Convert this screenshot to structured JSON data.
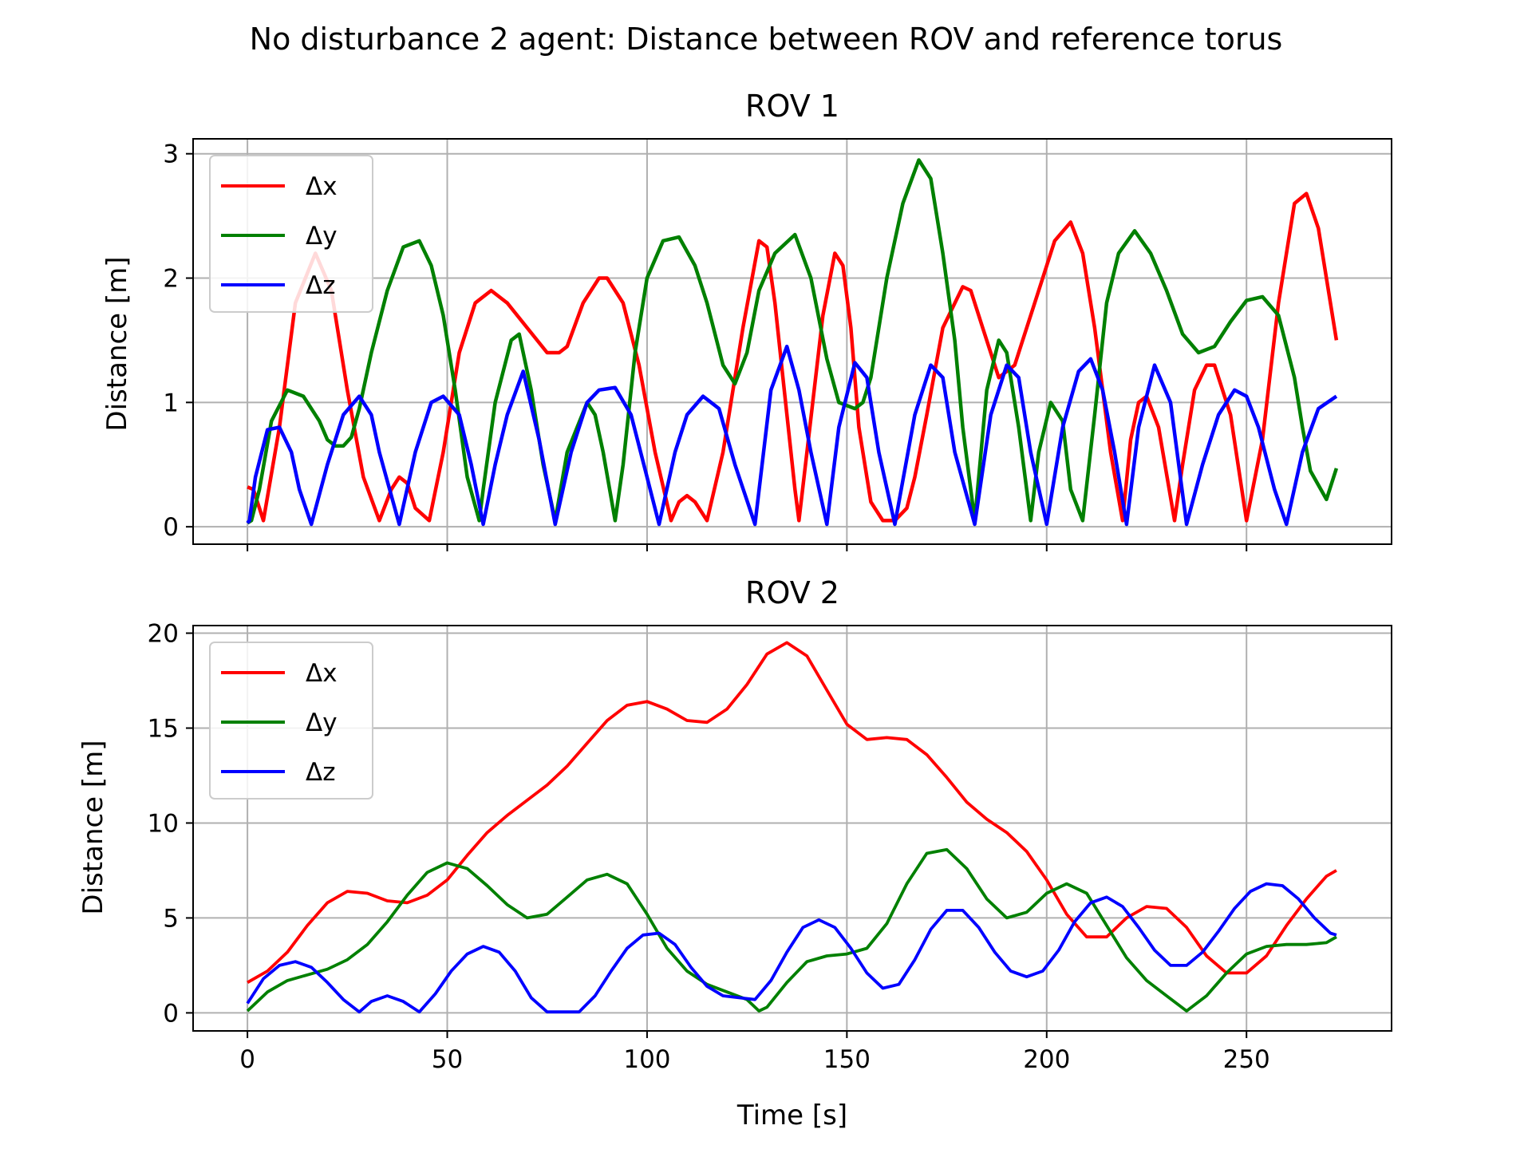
{
  "figure": {
    "suptitle": "No disturbance 2 agent: Distance between ROV and reference torus"
  },
  "colors": {
    "dx": "#ff0000",
    "dy": "#008000",
    "dz": "#0000ff",
    "grid": "#b0b0b0"
  },
  "chart_data": [
    {
      "type": "line",
      "title": "ROV 1",
      "xlabel": "",
      "ylabel": "Distance [m]",
      "xlim": [
        -13.6,
        286.3
      ],
      "ylim": [
        -0.14,
        3.12
      ],
      "xticks": [
        0,
        50,
        100,
        150,
        200,
        250
      ],
      "xtick_labels": [
        "",
        "",
        "",
        "",
        "",
        ""
      ],
      "yticks": [
        0,
        1,
        2,
        3
      ],
      "ytick_labels": [
        "0",
        "1",
        "2",
        "3"
      ],
      "grid": true,
      "legend_position": "upper-left",
      "series": [
        {
          "name": "Δx",
          "color": "#ff0000",
          "x": [
            0,
            1.5,
            4,
            8,
            12,
            17,
            21,
            25,
            29,
            33,
            36,
            38,
            40,
            42,
            45.5,
            49,
            53,
            57,
            61,
            65,
            70,
            75,
            78,
            80,
            84,
            88,
            90,
            94,
            98,
            102,
            106,
            108,
            110,
            112,
            115,
            119,
            124,
            128,
            130,
            132,
            134,
            137,
            138,
            140,
            144,
            147,
            149,
            151,
            153,
            156,
            159,
            162,
            165,
            167,
            170,
            174,
            179,
            181,
            184,
            188,
            192,
            194,
            198,
            202,
            206,
            209,
            212,
            216,
            219,
            221,
            223,
            225,
            228,
            232,
            234,
            237,
            240,
            242,
            246,
            250,
            254,
            258,
            262,
            265,
            268,
            272.5
          ],
          "y": [
            0.32,
            0.3,
            0.05,
            0.8,
            1.8,
            2.2,
            1.9,
            1.1,
            0.4,
            0.05,
            0.3,
            0.4,
            0.35,
            0.15,
            0.05,
            0.6,
            1.4,
            1.8,
            1.9,
            1.8,
            1.6,
            1.4,
            1.4,
            1.45,
            1.8,
            2.0,
            2.0,
            1.8,
            1.3,
            0.6,
            0.05,
            0.2,
            0.25,
            0.2,
            0.05,
            0.6,
            1.6,
            2.3,
            2.25,
            1.8,
            1.2,
            0.3,
            0.05,
            0.6,
            1.7,
            2.2,
            2.1,
            1.6,
            0.8,
            0.2,
            0.05,
            0.05,
            0.15,
            0.4,
            0.9,
            1.6,
            1.93,
            1.9,
            1.6,
            1.2,
            1.3,
            1.5,
            1.9,
            2.3,
            2.45,
            2.2,
            1.6,
            0.6,
            0.05,
            0.7,
            1.0,
            1.05,
            0.8,
            0.05,
            0.5,
            1.1,
            1.3,
            1.3,
            0.9,
            0.05,
            0.7,
            1.8,
            2.6,
            2.68,
            2.4,
            1.5
          ]
        },
        {
          "name": "Δy",
          "color": "#008000",
          "x": [
            0,
            1,
            3,
            6,
            10,
            14,
            18,
            20,
            22,
            24,
            26,
            28,
            31,
            35,
            39,
            43,
            46,
            49,
            52,
            55,
            58,
            59,
            62,
            66,
            68,
            71,
            74,
            77,
            80,
            85,
            87,
            89,
            92,
            94,
            97,
            100,
            104,
            108,
            112,
            115,
            119,
            122,
            125,
            128,
            132,
            137,
            141,
            145,
            148,
            152,
            154,
            156,
            160,
            164,
            168,
            171,
            174,
            177,
            179,
            182,
            185,
            188,
            190,
            193,
            196,
            198,
            201,
            204,
            206,
            209,
            212,
            215,
            218,
            222,
            226,
            230,
            234,
            238,
            242,
            246,
            250,
            254,
            258,
            262,
            264,
            266,
            270,
            272.5
          ],
          "y": [
            0.03,
            0.05,
            0.3,
            0.85,
            1.1,
            1.05,
            0.85,
            0.7,
            0.65,
            0.65,
            0.72,
            0.95,
            1.4,
            1.9,
            2.25,
            2.3,
            2.1,
            1.7,
            1.1,
            0.4,
            0.05,
            0.3,
            1.0,
            1.5,
            1.55,
            1.1,
            0.5,
            0.05,
            0.6,
            1.0,
            0.9,
            0.6,
            0.05,
            0.5,
            1.4,
            2.0,
            2.3,
            2.33,
            2.1,
            1.8,
            1.3,
            1.15,
            1.4,
            1.9,
            2.2,
            2.35,
            2.0,
            1.35,
            1.0,
            0.95,
            1.0,
            1.2,
            2.0,
            2.6,
            2.95,
            2.8,
            2.2,
            1.5,
            0.8,
            0.05,
            1.1,
            1.5,
            1.4,
            0.8,
            0.05,
            0.6,
            1.0,
            0.85,
            0.3,
            0.05,
            0.9,
            1.8,
            2.2,
            2.38,
            2.2,
            1.9,
            1.55,
            1.4,
            1.45,
            1.65,
            1.82,
            1.85,
            1.7,
            1.2,
            0.8,
            0.45,
            0.22,
            0.47
          ]
        },
        {
          "name": "Δz",
          "color": "#0000ff",
          "x": [
            0,
            0.5,
            2,
            5,
            8,
            11,
            13,
            16,
            20,
            24,
            28,
            31,
            33,
            38,
            42,
            46,
            49,
            53,
            56,
            59,
            62,
            65,
            69,
            73,
            77,
            81,
            85,
            88,
            92,
            96,
            100,
            103,
            107,
            110,
            114,
            118,
            122,
            127,
            131,
            135,
            138,
            141,
            145,
            148,
            152,
            155,
            158,
            162,
            167,
            171,
            174,
            177,
            182,
            186,
            190,
            193,
            196,
            200,
            204,
            208,
            211,
            214,
            217,
            220,
            223,
            227,
            231,
            235,
            239,
            243,
            247,
            250,
            253,
            257,
            260,
            264,
            268,
            272.5
          ],
          "y": [
            0.03,
            0.05,
            0.4,
            0.78,
            0.8,
            0.6,
            0.3,
            0.02,
            0.5,
            0.9,
            1.05,
            0.9,
            0.6,
            0.02,
            0.6,
            1.0,
            1.05,
            0.9,
            0.5,
            0.02,
            0.5,
            0.9,
            1.25,
            0.7,
            0.02,
            0.6,
            1.0,
            1.1,
            1.12,
            0.9,
            0.4,
            0.02,
            0.6,
            0.9,
            1.05,
            0.95,
            0.5,
            0.02,
            1.1,
            1.45,
            1.1,
            0.6,
            0.02,
            0.8,
            1.32,
            1.2,
            0.6,
            0.02,
            0.9,
            1.3,
            1.2,
            0.6,
            0.02,
            0.9,
            1.3,
            1.2,
            0.6,
            0.02,
            0.8,
            1.25,
            1.35,
            1.1,
            0.6,
            0.02,
            0.8,
            1.3,
            1.0,
            0.02,
            0.5,
            0.9,
            1.1,
            1.05,
            0.8,
            0.3,
            0.02,
            0.6,
            0.95,
            1.05
          ]
        }
      ]
    },
    {
      "type": "line",
      "title": "ROV 2",
      "xlabel": "Time [s]",
      "ylabel": "Distance [m]",
      "xlim": [
        -13.6,
        286.3
      ],
      "ylim": [
        -0.95,
        20.4
      ],
      "xticks": [
        0,
        50,
        100,
        150,
        200,
        250
      ],
      "xtick_labels": [
        "0",
        "50",
        "100",
        "150",
        "200",
        "250"
      ],
      "yticks": [
        0,
        5,
        10,
        15,
        20
      ],
      "ytick_labels": [
        "0",
        "5",
        "10",
        "15",
        "20"
      ],
      "grid": true,
      "legend_position": "upper-left",
      "series": [
        {
          "name": "Δx",
          "color": "#ff0000",
          "x": [
            0,
            5,
            10,
            15,
            20,
            25,
            30,
            35,
            40,
            45,
            50,
            55,
            60,
            65,
            70,
            75,
            80,
            85,
            90,
            95,
            100,
            105,
            110,
            115,
            120,
            125,
            130,
            135,
            140,
            145,
            150,
            155,
            160,
            165,
            170,
            175,
            180,
            185,
            190,
            195,
            200,
            205,
            210,
            215,
            220,
            225,
            230,
            235,
            240,
            245,
            250,
            255,
            260,
            265,
            270,
            272.5
          ],
          "y": [
            1.6,
            2.2,
            3.2,
            4.6,
            5.8,
            6.4,
            6.3,
            5.9,
            5.8,
            6.2,
            7.0,
            8.3,
            9.5,
            10.4,
            11.2,
            12.0,
            13.0,
            14.2,
            15.4,
            16.2,
            16.4,
            16.0,
            15.4,
            15.3,
            16.0,
            17.3,
            18.9,
            19.5,
            18.8,
            17.0,
            15.2,
            14.4,
            14.5,
            14.4,
            13.6,
            12.4,
            11.1,
            10.2,
            9.5,
            8.5,
            7.0,
            5.2,
            4.0,
            4.0,
            5.0,
            5.6,
            5.5,
            4.5,
            3.0,
            2.1,
            2.1,
            3.0,
            4.6,
            6.0,
            7.2,
            7.5
          ]
        },
        {
          "name": "Δy",
          "color": "#008000",
          "x": [
            0,
            5,
            10,
            15,
            20,
            25,
            30,
            35,
            40,
            45,
            50,
            55,
            60,
            65,
            70,
            75,
            80,
            85,
            90,
            95,
            100,
            105,
            110,
            115,
            120,
            125,
            128,
            130,
            135,
            140,
            145,
            150,
            155,
            160,
            165,
            170,
            175,
            180,
            185,
            190,
            195,
            200,
            205,
            210,
            215,
            220,
            225,
            230,
            235,
            240,
            245,
            250,
            255,
            260,
            265,
            270,
            272.5
          ],
          "y": [
            0.1,
            1.1,
            1.7,
            2.0,
            2.3,
            2.8,
            3.6,
            4.8,
            6.2,
            7.4,
            7.9,
            7.6,
            6.7,
            5.7,
            5.0,
            5.2,
            6.1,
            7.0,
            7.3,
            6.8,
            5.2,
            3.4,
            2.2,
            1.5,
            1.1,
            0.7,
            0.1,
            0.3,
            1.6,
            2.7,
            3.0,
            3.1,
            3.4,
            4.7,
            6.8,
            8.4,
            8.6,
            7.6,
            6.0,
            5.0,
            5.3,
            6.3,
            6.8,
            6.3,
            4.6,
            2.9,
            1.7,
            0.9,
            0.1,
            0.9,
            2.1,
            3.1,
            3.5,
            3.6,
            3.6,
            3.7,
            4.0
          ]
        },
        {
          "name": "Δz",
          "color": "#0000ff",
          "x": [
            0,
            4,
            8,
            12,
            16,
            20,
            24,
            28,
            31,
            35,
            39,
            43,
            47,
            51,
            55,
            59,
            63,
            67,
            71,
            75,
            79,
            83,
            87,
            91,
            95,
            99,
            103,
            107,
            111,
            115,
            119,
            123,
            127,
            131,
            135,
            139,
            143,
            147,
            151,
            155,
            159,
            163,
            167,
            171,
            175,
            179,
            183,
            187,
            191,
            195,
            199,
            203,
            207,
            211,
            215,
            219,
            223,
            227,
            231,
            235,
            239,
            243,
            247,
            251,
            255,
            259,
            263,
            267,
            271,
            272.5
          ],
          "y": [
            0.5,
            1.8,
            2.5,
            2.7,
            2.4,
            1.6,
            0.7,
            0.05,
            0.6,
            0.9,
            0.6,
            0.05,
            1.0,
            2.2,
            3.1,
            3.5,
            3.2,
            2.2,
            0.8,
            0.05,
            0.05,
            0.05,
            0.9,
            2.2,
            3.4,
            4.1,
            4.2,
            3.6,
            2.4,
            1.4,
            0.9,
            0.8,
            0.7,
            1.7,
            3.2,
            4.5,
            4.9,
            4.5,
            3.4,
            2.1,
            1.3,
            1.5,
            2.8,
            4.4,
            5.4,
            5.4,
            4.5,
            3.2,
            2.2,
            1.9,
            2.2,
            3.3,
            4.8,
            5.8,
            6.1,
            5.6,
            4.5,
            3.3,
            2.5,
            2.5,
            3.2,
            4.3,
            5.5,
            6.4,
            6.8,
            6.7,
            6.0,
            5.0,
            4.2,
            4.1
          ]
        }
      ]
    }
  ]
}
